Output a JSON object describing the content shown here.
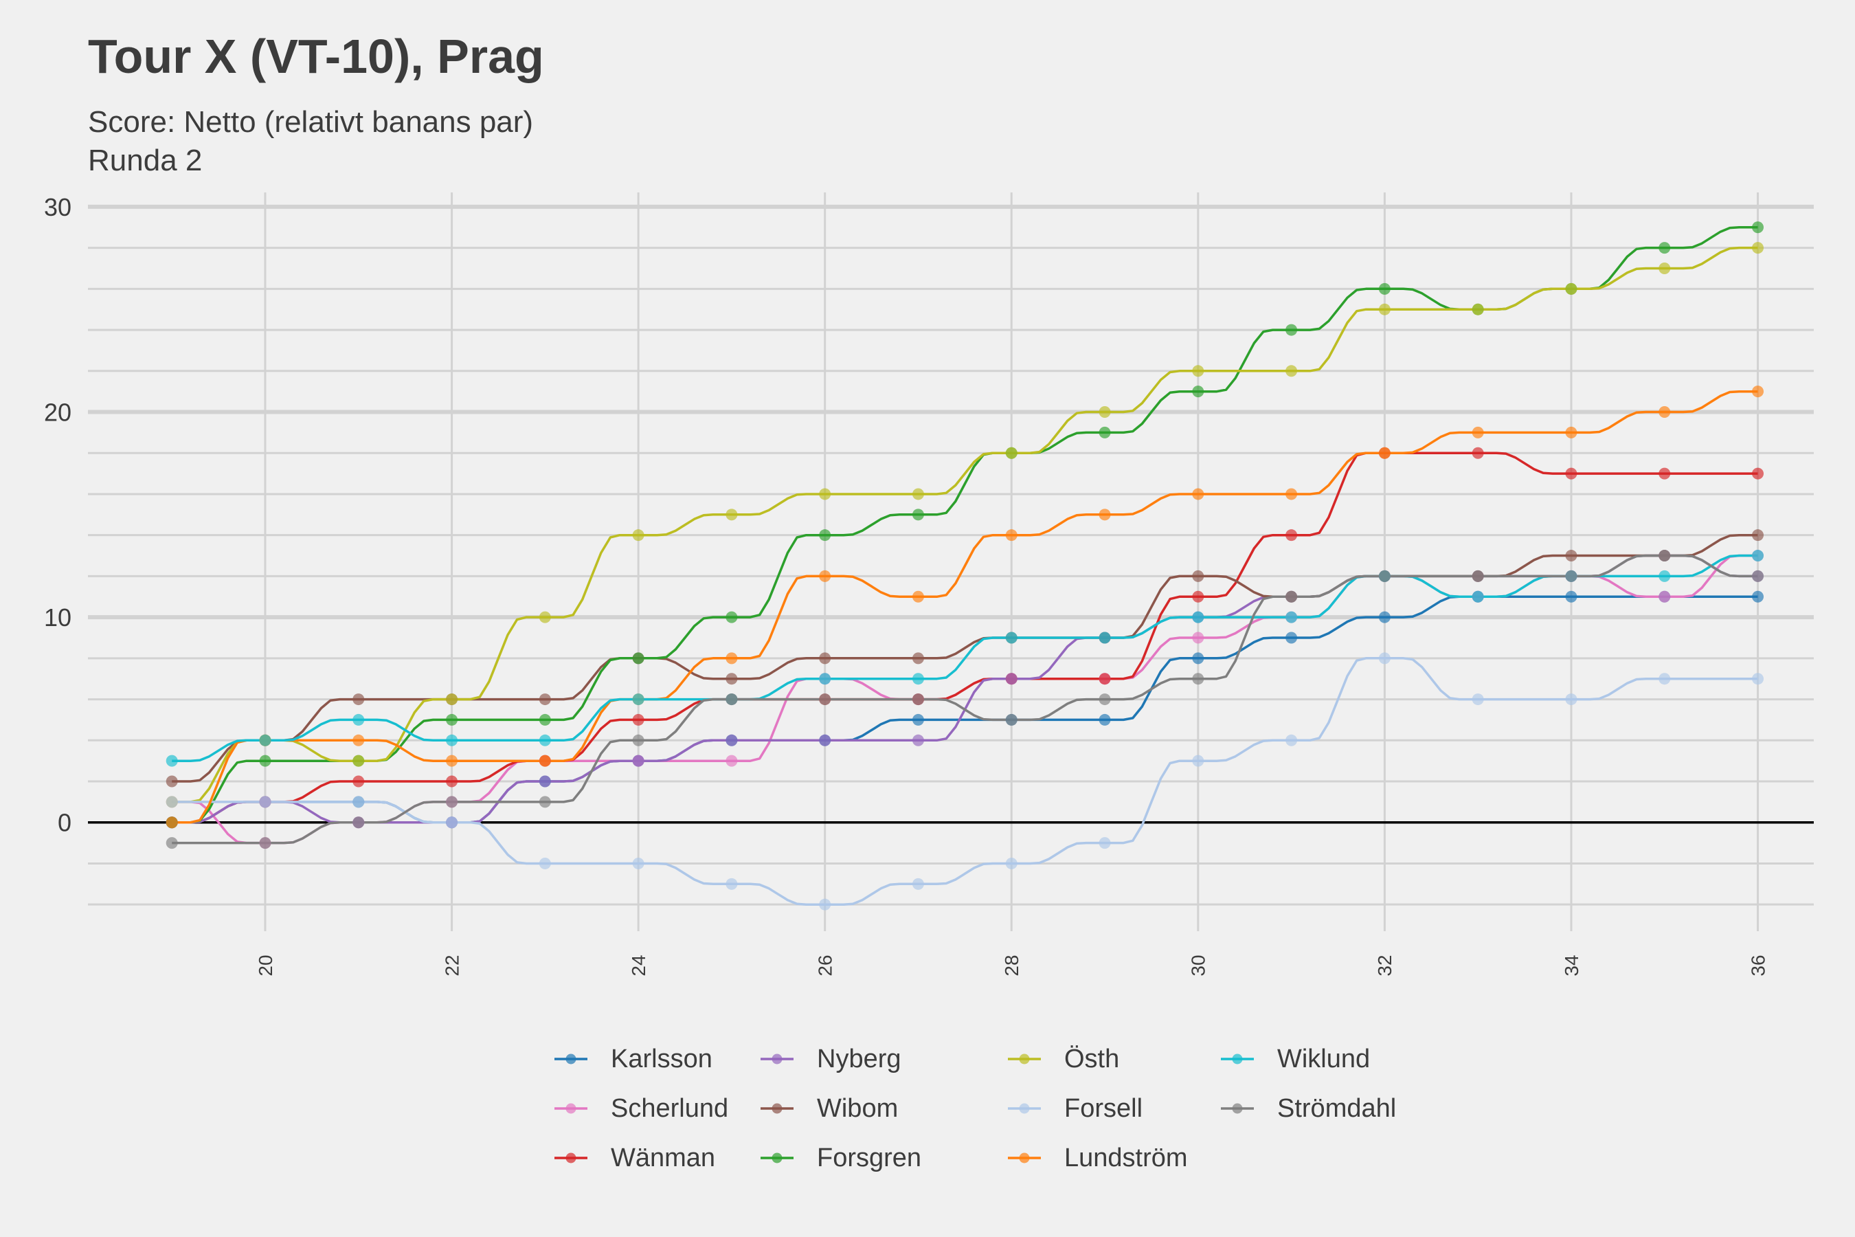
{
  "chart_data": {
    "type": "line",
    "title": "Tour X (VT-10), Prag",
    "subtitle_lines": [
      "Score: Netto (relativt banans par)",
      "Runda 2"
    ],
    "xlabel": "",
    "ylabel": "",
    "x": [
      19,
      20,
      21,
      22,
      23,
      24,
      25,
      26,
      27,
      28,
      29,
      30,
      31,
      32,
      33,
      34,
      35,
      36
    ],
    "xlim": [
      18.1,
      36.6
    ],
    "ylim": [
      -5.3,
      30.7
    ],
    "x_ticks": [
      20,
      22,
      24,
      26,
      28,
      30,
      32,
      34,
      36
    ],
    "y_ticks": [
      0,
      10,
      20,
      30
    ],
    "grid": true,
    "legend_position": "bottom",
    "legend_columns": [
      [
        "Karlsson",
        "Scherlund",
        "Wänman"
      ],
      [
        "Nyberg",
        "Wibom",
        "Forsgren"
      ],
      [
        "Östh",
        "Forsell",
        "Lundström"
      ],
      [
        "Wiklund",
        "Strömdahl"
      ]
    ],
    "series": [
      {
        "name": "Karlsson",
        "color": "#1f77b4",
        "values": [
          0,
          1,
          1,
          0,
          2,
          3,
          4,
          4,
          5,
          5,
          5,
          8,
          9,
          10,
          11,
          11,
          11,
          11
        ]
      },
      {
        "name": "Scherlund",
        "color": "#e377c2",
        "values": [
          1,
          -1,
          0,
          1,
          3,
          3,
          3,
          7,
          6,
          7,
          7,
          9,
          10,
          12,
          11,
          12,
          11,
          13
        ]
      },
      {
        "name": "Wänman",
        "color": "#d62728",
        "values": [
          0,
          1,
          2,
          2,
          3,
          5,
          6,
          6,
          6,
          7,
          7,
          11,
          14,
          18,
          18,
          17,
          17,
          17
        ]
      },
      {
        "name": "Nyberg",
        "color": "#9467bd",
        "values": [
          0,
          1,
          0,
          0,
          2,
          3,
          4,
          4,
          4,
          7,
          9,
          10,
          11,
          12,
          12,
          12,
          13,
          12
        ]
      },
      {
        "name": "Wibom",
        "color": "#8c564b",
        "values": [
          2,
          4,
          6,
          6,
          6,
          8,
          7,
          8,
          8,
          9,
          9,
          12,
          11,
          12,
          12,
          13,
          13,
          14
        ]
      },
      {
        "name": "Forsgren",
        "color": "#2ca02c",
        "values": [
          0,
          3,
          3,
          5,
          5,
          8,
          10,
          14,
          15,
          18,
          19,
          21,
          24,
          26,
          25,
          26,
          28,
          29
        ]
      },
      {
        "name": "Östh",
        "color": "#bcbd22",
        "values": [
          1,
          4,
          3,
          6,
          10,
          14,
          15,
          16,
          16,
          18,
          20,
          22,
          22,
          25,
          25,
          26,
          27,
          28
        ]
      },
      {
        "name": "Forsell",
        "color": "#aec7e8",
        "values": [
          1,
          1,
          1,
          0,
          -2,
          -2,
          -3,
          -4,
          -3,
          -2,
          -1,
          3,
          4,
          8,
          6,
          6,
          7,
          7
        ]
      },
      {
        "name": "Lundström",
        "color": "#ff7f0e",
        "values": [
          0,
          4,
          4,
          3,
          3,
          6,
          8,
          12,
          11,
          14,
          15,
          16,
          16,
          18,
          19,
          19,
          20,
          21
        ]
      },
      {
        "name": "Wiklund",
        "color": "#17becf",
        "values": [
          3,
          4,
          5,
          4,
          4,
          6,
          6,
          7,
          7,
          9,
          9,
          10,
          10,
          12,
          11,
          12,
          12,
          13
        ]
      },
      {
        "name": "Strömdahl",
        "color": "#7f7f7f",
        "values": [
          -1,
          -1,
          0,
          1,
          1,
          4,
          6,
          6,
          6,
          5,
          6,
          7,
          11,
          12,
          12,
          12,
          13,
          12
        ]
      }
    ]
  }
}
